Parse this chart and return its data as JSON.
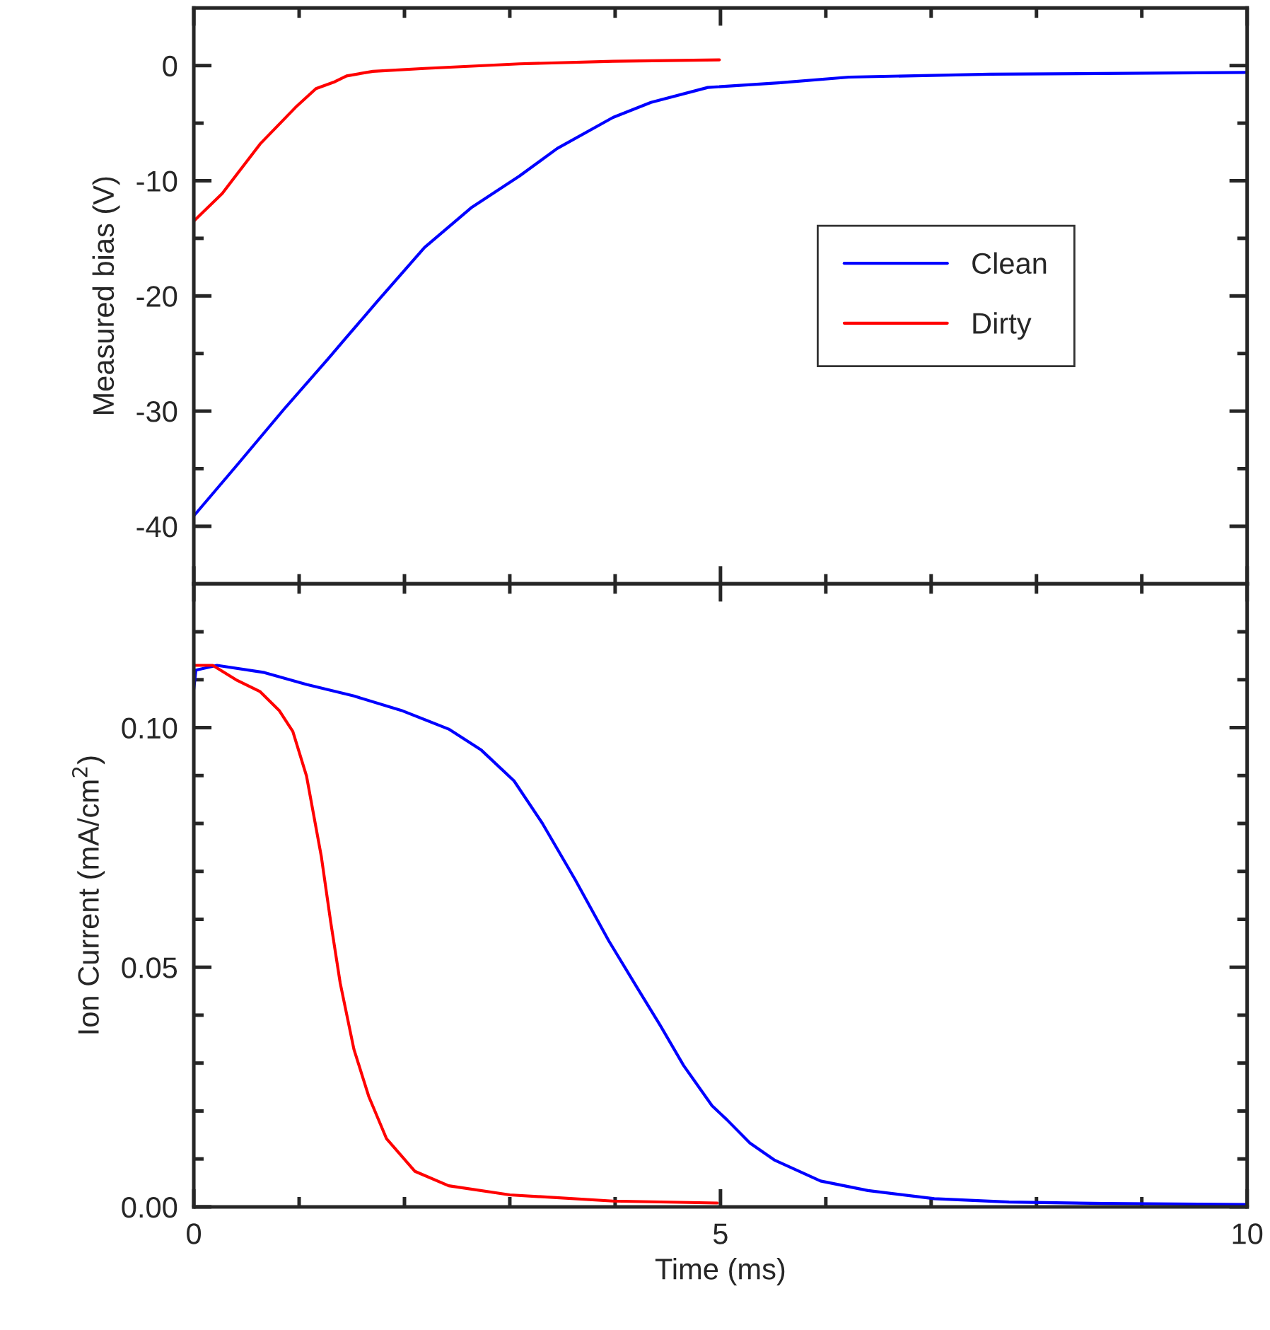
{
  "chart_data": [
    {
      "type": "line",
      "ylabel": "Measured bias (V)",
      "tick_labels": "y",
      "legend": "center right",
      "grid": false,
      "xlim": [
        0,
        10
      ],
      "xticks": [
        0,
        {
          "value": 1,
          "label": null
        },
        {
          "value": 2,
          "label": null
        },
        {
          "value": 3,
          "label": null
        },
        {
          "value": 4,
          "label": null
        },
        5,
        {
          "value": 6,
          "label": null
        },
        {
          "value": 7,
          "label": null
        },
        {
          "value": 8,
          "label": null
        },
        {
          "value": 9,
          "label": null
        },
        10
      ],
      "ylim": [
        -45,
        5
      ],
      "yticks": [
        -40,
        {
          "value": -35,
          "label": null
        },
        -30,
        {
          "value": -25,
          "label": null
        },
        -20,
        {
          "value": -15,
          "label": null
        },
        -10,
        {
          "value": -5,
          "label": null
        },
        0
      ],
      "series": [
        {
          "name": "Clean",
          "color": "#0000ff",
          "x": [
            0,
            0.4,
            0.85,
            1.3,
            1.43,
            1.74,
            2.19,
            2.64,
            3.09,
            3.45,
            3.98,
            4.34,
            4.88,
            5.55,
            6.22,
            7.56,
            10
          ],
          "values": [
            -39.1,
            -34.8,
            -29.9,
            -25.2,
            -23.8,
            -20.5,
            -15.8,
            -12.3,
            -9.6,
            -7.2,
            -4.5,
            -3.2,
            -1.9,
            -1.5,
            -1.0,
            -0.75,
            -0.6
          ]
        },
        {
          "name": "Dirty",
          "color": "#ff0000",
          "x": [
            0,
            0.27,
            0.63,
            0.98,
            1.16,
            1.34,
            1.45,
            1.7,
            2.19,
            3.09,
            3.98,
            4.99
          ],
          "values": [
            -13.5,
            -11.1,
            -6.8,
            -3.5,
            -2.0,
            -1.4,
            -0.9,
            -0.5,
            -0.25,
            0.15,
            0.37,
            0.5
          ]
        }
      ]
    },
    {
      "type": "line",
      "xlabel": "Time (ms)",
      "ylabel": "Ion Current (mA/cm$^{2}$)",
      "grid": false,
      "xlim": [
        0,
        10
      ],
      "xticks": [
        0,
        {
          "value": 1,
          "label": null
        },
        {
          "value": 2,
          "label": null
        },
        {
          "value": 3,
          "label": null
        },
        {
          "value": 4,
          "label": null
        },
        5,
        {
          "value": 6,
          "label": null
        },
        {
          "value": 7,
          "label": null
        },
        {
          "value": 8,
          "label": null
        },
        {
          "value": 9,
          "label": null
        },
        10
      ],
      "ylim": [
        0,
        0.13
      ],
      "yticks": [
        {
          "value": 0,
          "label": "0.00"
        },
        {
          "value": 0.01,
          "label": null
        },
        {
          "value": 0.02,
          "label": null
        },
        {
          "value": 0.03,
          "label": null
        },
        {
          "value": 0.04,
          "label": null
        },
        {
          "value": 0.05,
          "label": "0.05"
        },
        {
          "value": 0.06,
          "label": null
        },
        {
          "value": 0.07,
          "label": null
        },
        {
          "value": 0.08,
          "label": null
        },
        {
          "value": 0.09,
          "label": null
        },
        {
          "value": 0.1,
          "label": "0.10"
        },
        {
          "value": 0.11,
          "label": null
        },
        {
          "value": 0.12,
          "label": null
        }
      ],
      "series": [
        {
          "color": "#0000ff",
          "x": [
            0,
            0.02,
            0.22,
            0.67,
            1.07,
            1.52,
            1.97,
            2.42,
            2.73,
            3.04,
            3.31,
            3.62,
            3.94,
            4.21,
            4.43,
            4.65,
            4.92,
            5.06,
            5.28,
            5.51,
            5.95,
            6.4,
            7.03,
            7.74,
            8.64,
            10
          ],
          "values": [
            0.108,
            0.112,
            0.113,
            0.1115,
            0.109,
            0.1066,
            0.1036,
            0.0997,
            0.0953,
            0.0889,
            0.08,
            0.0683,
            0.0555,
            0.0457,
            0.0378,
            0.0295,
            0.0211,
            0.0182,
            0.0133,
            0.0098,
            0.0054,
            0.0034,
            0.0017,
            0.001,
            0.0007,
            0.0005
          ]
        },
        {
          "color": "#ff0000",
          "x": [
            0,
            0.18,
            0.4,
            0.63,
            0.81,
            0.94,
            1.07,
            1.21,
            1.3,
            1.39,
            1.52,
            1.66,
            1.83,
            2.1,
            2.42,
            3.0,
            3.98,
            4.97
          ],
          "values": [
            0.113,
            0.113,
            0.11,
            0.1075,
            0.1036,
            0.0992,
            0.0899,
            0.0732,
            0.0594,
            0.0467,
            0.0329,
            0.0231,
            0.0142,
            0.0074,
            0.0044,
            0.0025,
            0.0012,
            0.0008
          ]
        }
      ]
    }
  ]
}
